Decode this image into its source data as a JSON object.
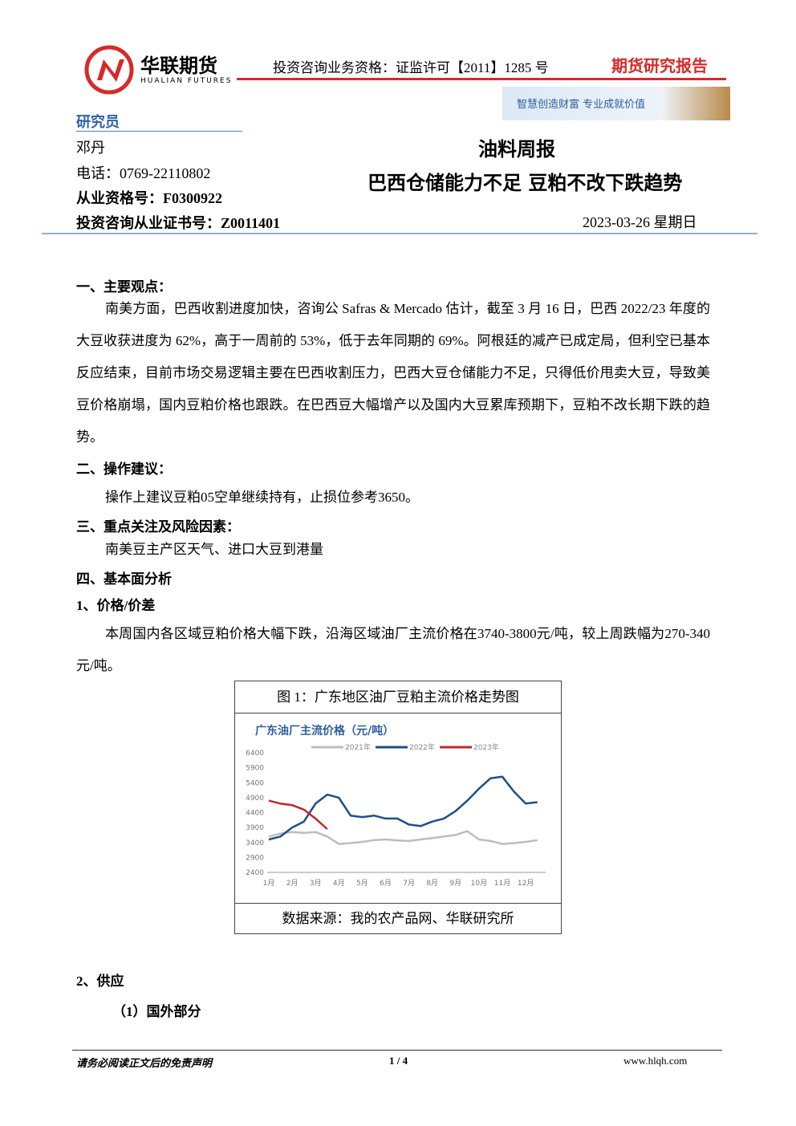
{
  "header": {
    "company": "华联期货",
    "company_en": "HUALIAN FUTURES",
    "qualification": "投资咨询业务资格：证监许可【2011】1285 号",
    "report_type": "期货研究报告",
    "slogan": "智慧创造财富 专业成就价值"
  },
  "author": {
    "heading": "研究员",
    "name": "邓丹",
    "phone": "电话：0769-22110802",
    "license": "从业资格号：F0300922",
    "consult_license": "投资咨询从业证书号：Z0011401"
  },
  "report": {
    "series": "油料周报",
    "title": "巴西仓储能力不足 豆粕不改下跌趋势",
    "date": "2023-03-26  星期日"
  },
  "body": [
    {
      "heading": "一、主要观点：",
      "text": "南美方面，巴西收割进度加快，咨询公 Safras & Mercado 估计，截至 3 月 16 日，巴西 2022/23 年度的大豆收获进度为 62%，高于一周前的 53%，低于去年同期的 69%。阿根廷的减产已成定局，但利空已基本反应结束，目前市场交易逻辑主要在巴西收割压力，巴西大豆仓储能力不足，只得低价甩卖大豆，导致美豆价格崩塌，国内豆粕价格也跟跌。在巴西豆大幅增产以及国内大豆累库预期下，豆粕不改长期下跌的趋势。"
    },
    {
      "heading": "二、操作建议：",
      "text": "操作上建议豆粕05空单继续持有，止损位参考3650。"
    },
    {
      "heading": "三、重点关注及风险因素：",
      "text": "南美豆主产区天气、进口大豆到港量"
    }
  ],
  "section4": {
    "heading": "四、基本面分析",
    "sub1": "1、价格/价差",
    "text": "本周国内各区域豆粕价格大幅下跌，沿海区域油厂主流价格在3740-3800元/吨，较上周跌幅为270-340元/吨。",
    "sub2": "2、供应",
    "sub2a": "（1）国外部分"
  },
  "figure": {
    "caption": "图 1：广东地区油厂豆粕主流价格走势图",
    "source": "数据来源：我的农产品网、华联研究所"
  },
  "chart_data": {
    "type": "line",
    "title": "广东油厂主流价格（元/吨）",
    "categories": [
      "1月",
      null,
      "2月",
      null,
      "3月",
      null,
      "4月",
      null,
      "5月",
      null,
      "6月",
      null,
      "7月",
      null,
      "8月",
      null,
      "9月",
      null,
      "10月",
      null,
      "11月",
      null,
      "12月",
      null
    ],
    "series": [
      {
        "name": "2021年",
        "color": "#bdbdbd",
        "values": [
          3600,
          3700,
          3750,
          3720,
          3750,
          3600,
          3350,
          3380,
          3420,
          3480,
          3500,
          3470,
          3450,
          3500,
          3550,
          3600,
          3650,
          3780,
          3500,
          3450,
          3350,
          3380,
          3420,
          3480
        ]
      },
      {
        "name": "2022年",
        "color": "#1f4e8c",
        "values": [
          3500,
          3600,
          3900,
          4100,
          4700,
          5000,
          4900,
          4300,
          4250,
          4300,
          4200,
          4200,
          4000,
          3950,
          4100,
          4200,
          4450,
          4800,
          5200,
          5550,
          5600,
          5100,
          4700,
          4750
        ]
      },
      {
        "name": "2023年",
        "color": "#c0282d",
        "values": [
          4800,
          4700,
          4650,
          4500,
          4200,
          3850,
          null,
          null,
          null,
          null,
          null,
          null,
          null,
          null,
          null,
          null,
          null,
          null,
          null,
          null,
          null,
          null,
          null,
          null
        ]
      }
    ],
    "ylim": [
      2400,
      6400
    ],
    "yticks": [
      2400,
      2900,
      3400,
      3900,
      4400,
      4900,
      5400,
      5900,
      6400
    ],
    "grid": false
  },
  "footer": {
    "disclaimer": "请务必阅读正文后的免责声明",
    "page": "1 / 4",
    "site": "www.hlqh.com"
  }
}
